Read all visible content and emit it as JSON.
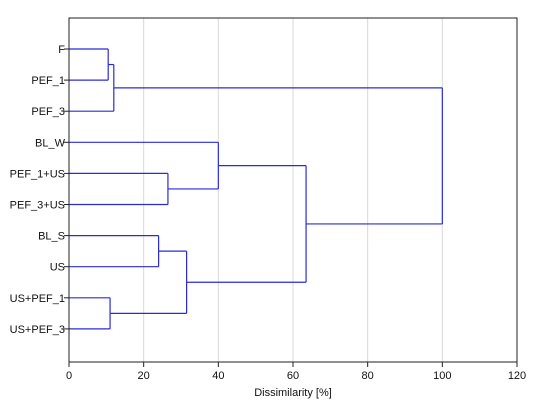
{
  "chart_data": {
    "type": "dendrogram",
    "orientation": "horizontal",
    "xlabel": "Dissimilarity [%]",
    "xlim": [
      0,
      120
    ],
    "xticks": [
      "0",
      "20",
      "40",
      "60",
      "80",
      "100",
      "120"
    ],
    "grid": "vertical",
    "leaves": [
      "F",
      "PEF_1",
      "PEF_3",
      "BL_W",
      "PEF_1+US",
      "PEF_3+US",
      "BL_S",
      "US",
      "US+PEF_1",
      "US+PEF_3"
    ],
    "merges": [
      {
        "left": "F",
        "right": "PEF_1",
        "height": 10.5
      },
      {
        "left": "F+PEF_1",
        "right": "PEF_3",
        "height": 12
      },
      {
        "left": "PEF_1+US",
        "right": "PEF_3+US",
        "height": 26.5
      },
      {
        "left": "BL_W",
        "right": "PEF_1+US+PEF_3+US",
        "height": 40
      },
      {
        "left": "BL_S",
        "right": "US",
        "height": 24
      },
      {
        "left": "US+PEF_1",
        "right": "US+PEF_3",
        "height": 11
      },
      {
        "left": "BL_S+US",
        "right": "US+PEF_1+US+PEF_3",
        "height": 31.5
      },
      {
        "left": "BL_W group",
        "right": "BL_S group",
        "height": 63.5
      },
      {
        "left": "F group",
        "right": "BL_W+BL_S group",
        "height": 100
      }
    ],
    "colors": {
      "branch": "#2b2bd6",
      "grid": "#d9d9d9",
      "axis": "#222222"
    }
  }
}
